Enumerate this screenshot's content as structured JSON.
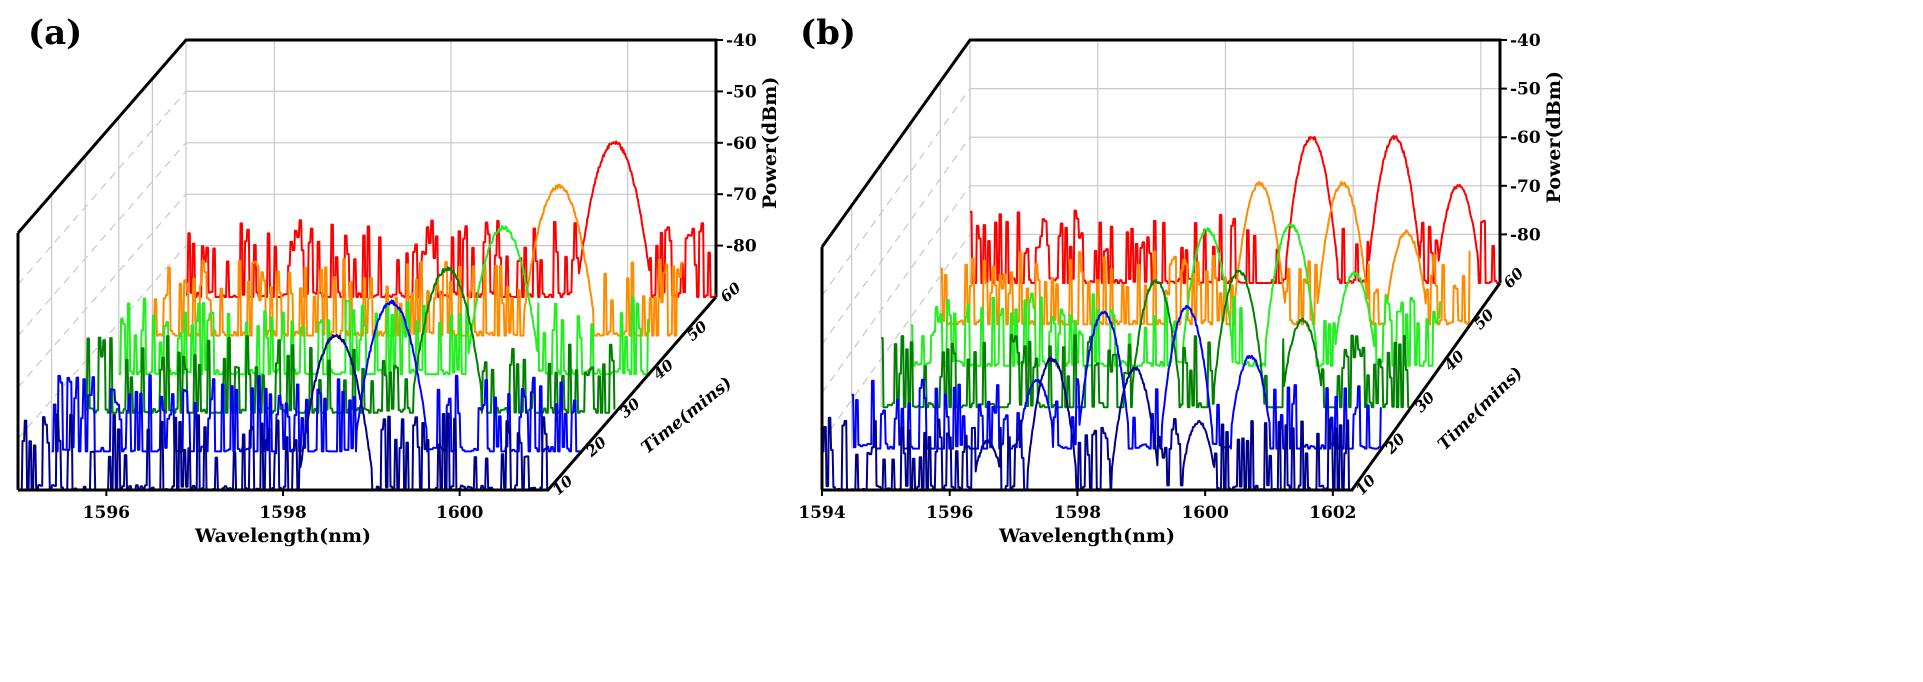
{
  "chart_data": [
    {
      "type": "line",
      "panel_label": "(a)",
      "xlabel": "Wavelength(nm)",
      "ylabel": "Power(dBm)",
      "zlabel": "Time(mins)",
      "x_ticks": [
        1596,
        1598,
        1600
      ],
      "y_ticks": [
        -40,
        -50,
        -60,
        -70,
        -80
      ],
      "time_ticks": [
        10,
        20,
        30,
        40,
        50,
        60
      ],
      "xlim": [
        1595,
        1601
      ],
      "ylim": [
        -90,
        -40
      ],
      "noise_floor_dBm": -85,
      "series": [
        {
          "name": "10 mins",
          "time": 10,
          "color": "#00008b",
          "peaks": [
            {
              "wavelength": 1598.6,
              "power": -60
            }
          ]
        },
        {
          "name": "20 mins",
          "time": 20,
          "color": "#0000ff",
          "peaks": [
            {
              "wavelength": 1598.85,
              "power": -61
            }
          ]
        },
        {
          "name": "30 mins",
          "time": 30,
          "color": "#008000",
          "peaks": [
            {
              "wavelength": 1599.1,
              "power": -62
            }
          ]
        },
        {
          "name": "40 mins",
          "time": 40,
          "color": "#22ee22",
          "peaks": [
            {
              "wavelength": 1599.35,
              "power": -61.5
            }
          ]
        },
        {
          "name": "50 mins",
          "time": 50,
          "color": "#ff8c00",
          "peaks": [
            {
              "wavelength": 1599.6,
              "power": -61
            }
          ]
        },
        {
          "name": "60 mins",
          "time": 60,
          "color": "#ff0000",
          "peaks": [
            {
              "wavelength": 1599.85,
              "power": -60
            }
          ]
        }
      ]
    },
    {
      "type": "line",
      "panel_label": "(b)",
      "xlabel": "Wavelength(nm)",
      "ylabel": "Power(dBm)",
      "zlabel": "Time(mins)",
      "x_ticks": [
        1594,
        1596,
        1598,
        1600,
        1602
      ],
      "y_ticks": [
        -40,
        -50,
        -60,
        -70,
        -80
      ],
      "time_ticks": [
        10,
        20,
        30,
        40,
        50,
        60
      ],
      "xlim": [
        1594,
        1602.3
      ],
      "ylim": [
        -90,
        -40
      ],
      "noise_floor_dBm": -85,
      "series": [
        {
          "name": "10 mins",
          "time": 10,
          "color": "#00008b",
          "peaks": [
            {
              "wavelength": 1596.6,
              "power": -80
            },
            {
              "wavelength": 1597.6,
              "power": -63
            },
            {
              "wavelength": 1598.9,
              "power": -65
            },
            {
              "wavelength": 1599.9,
              "power": -76
            }
          ]
        },
        {
          "name": "20 mins",
          "time": 20,
          "color": "#0000ff",
          "peaks": [
            {
              "wavelength": 1596.9,
              "power": -76
            },
            {
              "wavelength": 1597.95,
              "power": -62
            },
            {
              "wavelength": 1599.25,
              "power": -61
            },
            {
              "wavelength": 1600.25,
              "power": -71
            }
          ]
        },
        {
          "name": "30 mins",
          "time": 30,
          "color": "#008000",
          "peaks": [
            {
              "wavelength": 1598.3,
              "power": -64
            },
            {
              "wavelength": 1599.6,
              "power": -62
            },
            {
              "wavelength": 1600.6,
              "power": -72
            }
          ]
        },
        {
          "name": "40 mins",
          "time": 40,
          "color": "#22ee22",
          "peaks": [
            {
              "wavelength": 1598.65,
              "power": -62
            },
            {
              "wavelength": 1599.95,
              "power": -61
            },
            {
              "wavelength": 1600.95,
              "power": -71
            }
          ]
        },
        {
          "name": "50 mins",
          "time": 50,
          "color": "#ff8c00",
          "peaks": [
            {
              "wavelength": 1599.0,
              "power": -61
            },
            {
              "wavelength": 1600.3,
              "power": -61
            },
            {
              "wavelength": 1601.3,
              "power": -71
            }
          ]
        },
        {
          "name": "60 mins",
          "time": 60,
          "color": "#ff0000",
          "peaks": [
            {
              "wavelength": 1599.35,
              "power": -60
            },
            {
              "wavelength": 1600.65,
              "power": -60
            },
            {
              "wavelength": 1601.65,
              "power": -70
            }
          ]
        }
      ]
    }
  ]
}
